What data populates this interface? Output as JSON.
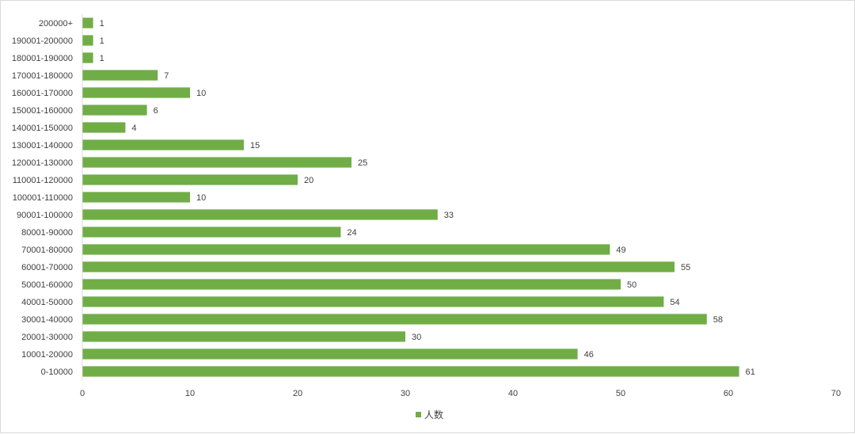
{
  "chart_data": {
    "type": "bar",
    "orientation": "horizontal",
    "categories": [
      "0-10000",
      "10001-20000",
      "20001-30000",
      "30001-40000",
      "40001-50000",
      "50001-60000",
      "60001-70000",
      "70001-80000",
      "80001-90000",
      "90001-100000",
      "100001-110000",
      "110001-120000",
      "120001-130000",
      "130001-140000",
      "140001-150000",
      "150001-160000",
      "160001-170000",
      "170001-180000",
      "180001-190000",
      "190001-200000",
      "200000+"
    ],
    "series": [
      {
        "name": "人数",
        "values": [
          61,
          46,
          30,
          58,
          54,
          50,
          55,
          49,
          24,
          33,
          10,
          20,
          25,
          15,
          4,
          6,
          10,
          7,
          1,
          1,
          1
        ]
      }
    ],
    "xlim": [
      0,
      70
    ],
    "xticks": [
      "0",
      "10",
      "20",
      "30",
      "40",
      "50",
      "60",
      "70"
    ],
    "title": "",
    "xlabel": "",
    "ylabel": "",
    "grid": false,
    "legend_position": "bottom",
    "data_labels": true,
    "bar_color": "#70ad47"
  }
}
